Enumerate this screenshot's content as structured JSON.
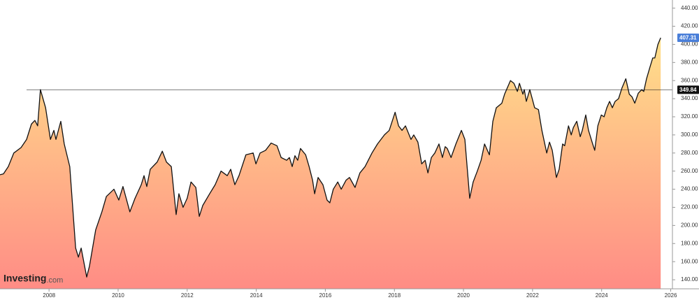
{
  "chart_data": {
    "type": "area",
    "logo": "Investing",
    "logo_suffix": ".com",
    "line_color": "#111111",
    "fill_top_color": "#ffe08a",
    "fill_bottom_color": "#ff8c85",
    "last_value_color": "#4a7fd9",
    "reference_line": 349.84,
    "reference_color": "#111111",
    "x": [
      2006.58,
      2006.68,
      2006.82,
      2006.98,
      2007.19,
      2007.35,
      2007.49,
      2007.59,
      2007.67,
      2007.75,
      2007.9,
      2008.04,
      2008.14,
      2008.2,
      2008.34,
      2008.44,
      2008.6,
      2008.77,
      2008.85,
      2008.93,
      2009.09,
      2009.17,
      2009.35,
      2009.53,
      2009.66,
      2009.88,
      2010.02,
      2010.14,
      2010.34,
      2010.49,
      2010.67,
      2010.75,
      2010.83,
      2010.93,
      2011.13,
      2011.28,
      2011.4,
      2011.54,
      2011.68,
      2011.76,
      2011.88,
      2012.0,
      2012.11,
      2012.25,
      2012.35,
      2012.45,
      2012.65,
      2012.81,
      2012.98,
      2013.16,
      2013.26,
      2013.38,
      2013.5,
      2013.7,
      2013.91,
      2013.99,
      2014.11,
      2014.27,
      2014.43,
      2014.6,
      2014.72,
      2014.88,
      2014.96,
      2015.04,
      2015.12,
      2015.2,
      2015.28,
      2015.43,
      2015.53,
      2015.63,
      2015.69,
      2015.79,
      2015.93,
      2016.05,
      2016.13,
      2016.23,
      2016.36,
      2016.46,
      2016.6,
      2016.7,
      2016.86,
      2017.0,
      2017.15,
      2017.35,
      2017.51,
      2017.71,
      2017.85,
      2018.02,
      2018.12,
      2018.22,
      2018.32,
      2018.48,
      2018.56,
      2018.68,
      2018.79,
      2018.89,
      2018.97,
      2019.07,
      2019.17,
      2019.29,
      2019.39,
      2019.47,
      2019.53,
      2019.64,
      2019.78,
      2019.94,
      2020.04,
      2020.18,
      2020.28,
      2020.4,
      2020.51,
      2020.61,
      2020.75,
      2020.85,
      2020.95,
      2021.11,
      2021.19,
      2021.36,
      2021.46,
      2021.56,
      2021.62,
      2021.72,
      2021.76,
      2021.82,
      2021.92,
      2022.06,
      2022.17,
      2022.27,
      2022.41,
      2022.49,
      2022.57,
      2022.69,
      2022.77,
      2022.87,
      2022.93,
      2023.04,
      2023.12,
      2023.18,
      2023.28,
      2023.38,
      2023.44,
      2023.54,
      2023.62,
      2023.74,
      2023.8,
      2023.89,
      2023.99,
      2024.07,
      2024.15,
      2024.23,
      2024.31,
      2024.39,
      2024.49,
      2024.59,
      2024.7,
      2024.8,
      2024.88,
      2024.96,
      2025.06,
      2025.16,
      2025.22,
      2025.3,
      2025.4,
      2025.48,
      2025.54,
      2025.63,
      2025.71
    ],
    "values": [
      256,
      257,
      265,
      280,
      286,
      295,
      312,
      316,
      310,
      350,
      330,
      295,
      305,
      295,
      315,
      290,
      265,
      175,
      165,
      175,
      143,
      155,
      195,
      215,
      232,
      240,
      228,
      243,
      215,
      230,
      245,
      255,
      243,
      262,
      270,
      282,
      270,
      265,
      212,
      235,
      220,
      230,
      248,
      242,
      210,
      222,
      235,
      245,
      260,
      255,
      262,
      245,
      255,
      278,
      280,
      268,
      280,
      283,
      291,
      288,
      275,
      272,
      275,
      265,
      277,
      272,
      285,
      278,
      265,
      250,
      235,
      253,
      245,
      228,
      225,
      240,
      248,
      240,
      250,
      253,
      242,
      258,
      265,
      280,
      290,
      300,
      305,
      325,
      310,
      305,
      310,
      295,
      300,
      292,
      268,
      272,
      258,
      275,
      280,
      290,
      275,
      287,
      285,
      275,
      290,
      305,
      295,
      230,
      248,
      260,
      272,
      290,
      278,
      315,
      330,
      335,
      345,
      360,
      357,
      348,
      357,
      345,
      350,
      337,
      350,
      330,
      328,
      305,
      280,
      292,
      283,
      253,
      262,
      290,
      288,
      310,
      300,
      308,
      315,
      298,
      305,
      322,
      305,
      290,
      283,
      310,
      322,
      320,
      330,
      337,
      330,
      337,
      340,
      352,
      362,
      345,
      342,
      335,
      346,
      350,
      348,
      362,
      375,
      385,
      385,
      400,
      407.31
    ],
    "xlim": [
      2006.58,
      2026.05
    ],
    "xticks": [
      2008,
      2010,
      2012,
      2014,
      2016,
      2018,
      2020,
      2022,
      2024,
      2026
    ],
    "ylim": [
      130,
      449
    ],
    "yticks": [
      {
        "value": 140,
        "label": "140.00"
      },
      {
        "value": 160,
        "label": "160.00"
      },
      {
        "value": 180,
        "label": "180.00"
      },
      {
        "value": 200,
        "label": "200.00"
      },
      {
        "value": 220,
        "label": "220.00"
      },
      {
        "value": 240,
        "label": "240.00"
      },
      {
        "value": 260,
        "label": "260.00"
      },
      {
        "value": 280,
        "label": "280.00"
      },
      {
        "value": 300,
        "label": "300.00"
      },
      {
        "value": 320,
        "label": "320.00"
      },
      {
        "value": 340,
        "label": "340.00"
      },
      {
        "value": 360,
        "label": "360.00"
      },
      {
        "value": 380,
        "label": "380.00"
      },
      {
        "value": 400,
        "label": "400.00"
      },
      {
        "value": 420,
        "label": "420.00"
      },
      {
        "value": 440,
        "label": "440.00"
      }
    ]
  }
}
